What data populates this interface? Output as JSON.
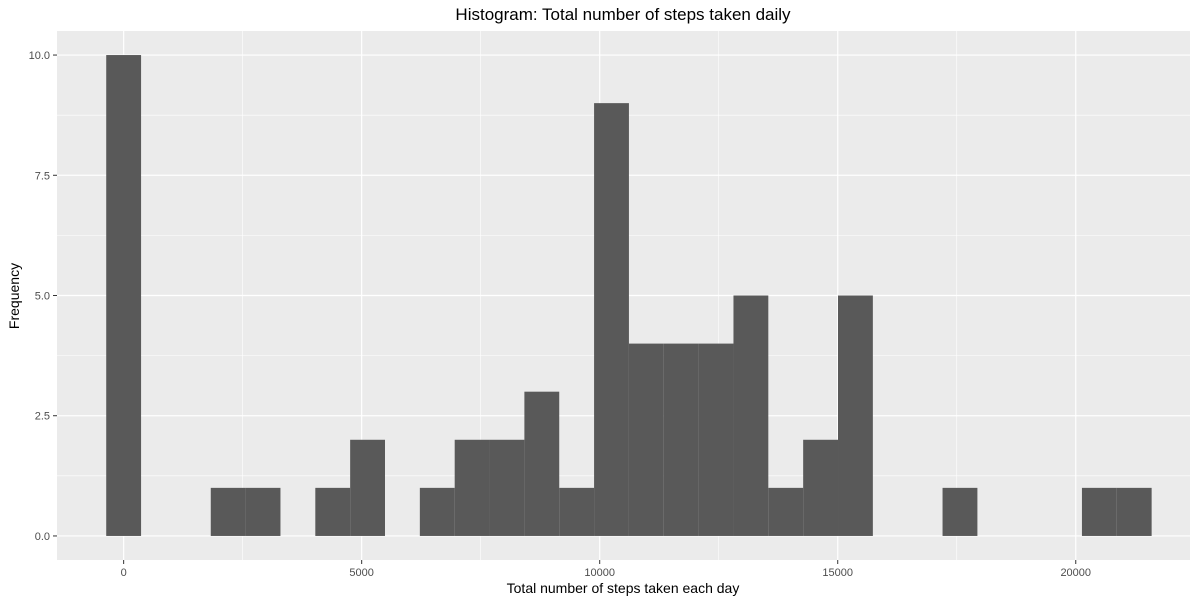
{
  "chart_data": {
    "type": "bar",
    "title": "Histogram: Total number of steps taken daily",
    "xlabel": "Total number of steps taken each day",
    "ylabel": "Frequency",
    "xlim": [
      -1400,
      22400
    ],
    "ylim": [
      -0.5,
      10.5
    ],
    "x_ticks": [
      0,
      5000,
      10000,
      15000,
      20000
    ],
    "x_tick_labels": [
      "0",
      "5000",
      "10000",
      "15000",
      "20000"
    ],
    "y_ticks": [
      0,
      2.5,
      5,
      7.5,
      10
    ],
    "y_tick_labels": [
      "0.0",
      "2.5",
      "5.0",
      "7.5",
      "10.0"
    ],
    "grid": true,
    "bar_color": "#595959",
    "panel_color": "#ebebeb",
    "grid_color": "#ffffff",
    "bins": [
      {
        "x0": -366,
        "x1": 366,
        "count": 10
      },
      {
        "x0": 366,
        "x1": 1098,
        "count": 0
      },
      {
        "x0": 1098,
        "x1": 1830,
        "count": 0
      },
      {
        "x0": 1830,
        "x1": 2562,
        "count": 1
      },
      {
        "x0": 2562,
        "x1": 3294,
        "count": 1
      },
      {
        "x0": 3294,
        "x1": 4026,
        "count": 0
      },
      {
        "x0": 4026,
        "x1": 4758,
        "count": 1
      },
      {
        "x0": 4758,
        "x1": 5490,
        "count": 2
      },
      {
        "x0": 5490,
        "x1": 6222,
        "count": 0
      },
      {
        "x0": 6222,
        "x1": 6954,
        "count": 1
      },
      {
        "x0": 6954,
        "x1": 7686,
        "count": 2
      },
      {
        "x0": 7686,
        "x1": 8418,
        "count": 2
      },
      {
        "x0": 8418,
        "x1": 9150,
        "count": 3
      },
      {
        "x0": 9150,
        "x1": 9882,
        "count": 1
      },
      {
        "x0": 9882,
        "x1": 10614,
        "count": 9
      },
      {
        "x0": 10614,
        "x1": 11346,
        "count": 4
      },
      {
        "x0": 11346,
        "x1": 12078,
        "count": 4
      },
      {
        "x0": 12078,
        "x1": 12810,
        "count": 4
      },
      {
        "x0": 12810,
        "x1": 13542,
        "count": 5
      },
      {
        "x0": 13542,
        "x1": 14274,
        "count": 1
      },
      {
        "x0": 14274,
        "x1": 15006,
        "count": 2
      },
      {
        "x0": 15006,
        "x1": 15738,
        "count": 5
      },
      {
        "x0": 15738,
        "x1": 16470,
        "count": 0
      },
      {
        "x0": 16470,
        "x1": 17202,
        "count": 0
      },
      {
        "x0": 17202,
        "x1": 17934,
        "count": 1
      },
      {
        "x0": 17934,
        "x1": 18666,
        "count": 0
      },
      {
        "x0": 18666,
        "x1": 19398,
        "count": 0
      },
      {
        "x0": 19398,
        "x1": 20130,
        "count": 0
      },
      {
        "x0": 20130,
        "x1": 20862,
        "count": 1
      },
      {
        "x0": 20862,
        "x1": 21594,
        "count": 1
      }
    ]
  }
}
